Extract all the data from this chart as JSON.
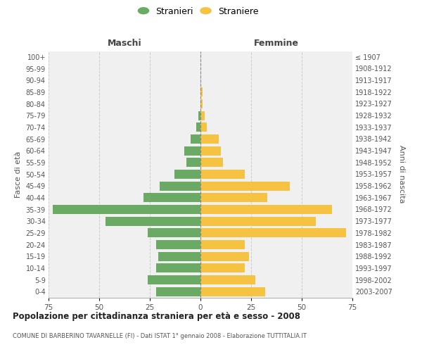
{
  "age_groups": [
    "0-4",
    "5-9",
    "10-14",
    "15-19",
    "20-24",
    "25-29",
    "30-34",
    "35-39",
    "40-44",
    "45-49",
    "50-54",
    "55-59",
    "60-64",
    "65-69",
    "70-74",
    "75-79",
    "80-84",
    "85-89",
    "90-94",
    "95-99",
    "100+"
  ],
  "birth_years": [
    "2003-2007",
    "1998-2002",
    "1993-1997",
    "1988-1992",
    "1983-1987",
    "1978-1982",
    "1973-1977",
    "1968-1972",
    "1963-1967",
    "1958-1962",
    "1953-1957",
    "1948-1952",
    "1943-1947",
    "1938-1942",
    "1933-1937",
    "1928-1932",
    "1923-1927",
    "1918-1922",
    "1913-1917",
    "1908-1912",
    "≤ 1907"
  ],
  "males": [
    22,
    26,
    22,
    21,
    22,
    26,
    47,
    73,
    28,
    20,
    13,
    7,
    8,
    5,
    2,
    1,
    0,
    0,
    0,
    0,
    0
  ],
  "females": [
    32,
    27,
    22,
    24,
    22,
    72,
    57,
    65,
    33,
    44,
    22,
    11,
    10,
    9,
    3,
    2,
    1,
    1,
    0,
    0,
    0
  ],
  "male_color": "#6aaa64",
  "female_color": "#f5c242",
  "background_color": "#f0f0f0",
  "grid_color": "#cccccc",
  "title": "Popolazione per cittadinanza straniera per età e sesso - 2008",
  "subtitle": "COMUNE DI BARBERINO TAVARNELLE (FI) - Dati ISTAT 1° gennaio 2008 - Elaborazione TUTTITALIA.IT",
  "xlabel_left": "Maschi",
  "xlabel_right": "Femmine",
  "ylabel_left": "Fasce di età",
  "ylabel_right": "Anni di nascita",
  "legend_male": "Stranieri",
  "legend_female": "Straniere",
  "xlim": 75
}
